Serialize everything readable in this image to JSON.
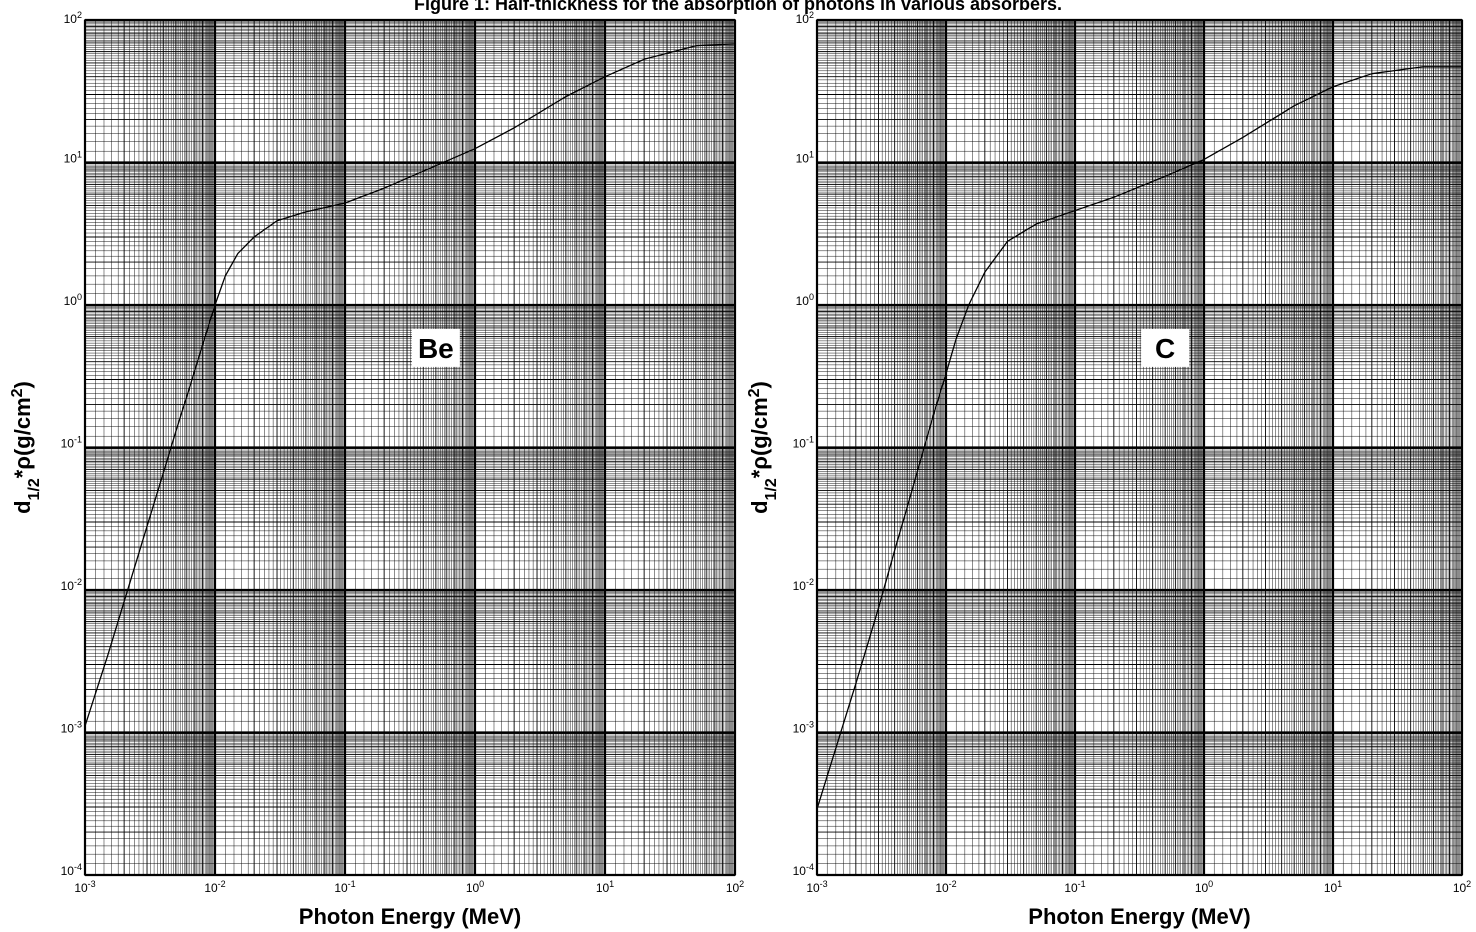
{
  "figure_title": "Figure 1: Half-thickness for the absorption of photons in various absorbers.",
  "chart_data": [
    {
      "type": "line",
      "label": "Be",
      "xlabel": "Photon Energy (MeV)",
      "ylabel": "d1/2*ρ(g/cm2)",
      "xscale": "log",
      "yscale": "log",
      "xlim": [
        0.001,
        100
      ],
      "ylim": [
        0.0001,
        100
      ],
      "grid": true,
      "x_ticks": [
        "10-3",
        "10-2",
        "10-1",
        "100",
        "101",
        "102"
      ],
      "y_ticks": [
        "10-4",
        "10-3",
        "10-2",
        "10-1",
        "100",
        "101",
        "102"
      ],
      "series": [
        {
          "x": [
            0.001,
            0.0015,
            0.002,
            0.003,
            0.004,
            0.005,
            0.006,
            0.008,
            0.01,
            0.012,
            0.015,
            0.02,
            0.03,
            0.05,
            0.1,
            0.2,
            0.5,
            1,
            2,
            5,
            10,
            20,
            50,
            100
          ],
          "y": [
            0.00111,
            0.0035,
            0.0083,
            0.028,
            0.066,
            0.13,
            0.22,
            0.52,
            1.0,
            1.6,
            2.3,
            3.0,
            3.9,
            4.5,
            5.2,
            6.6,
            9.5,
            12.5,
            17.5,
            29,
            40,
            53,
            66,
            68
          ]
        }
      ]
    },
    {
      "type": "line",
      "label": "C",
      "xlabel": "Photon Energy (MeV)",
      "ylabel": "d1/2*ρ(g/cm2)",
      "xscale": "log",
      "yscale": "log",
      "xlim": [
        0.001,
        100
      ],
      "ylim": [
        0.0001,
        100
      ],
      "grid": true,
      "x_ticks": [
        "10-3",
        "10-2",
        "10-1",
        "100",
        "101",
        "102"
      ],
      "y_ticks": [
        "10-4",
        "10-3",
        "10-2",
        "10-1",
        "100",
        "101",
        "102"
      ],
      "series": [
        {
          "x": [
            0.001,
            0.0015,
            0.002,
            0.003,
            0.004,
            0.005,
            0.006,
            0.008,
            0.01,
            0.012,
            0.015,
            0.02,
            0.03,
            0.05,
            0.1,
            0.2,
            0.5,
            1,
            2,
            5,
            10,
            20,
            50,
            100
          ],
          "y": [
            0.00029,
            0.00095,
            0.0022,
            0.0075,
            0.019,
            0.038,
            0.068,
            0.17,
            0.33,
            0.58,
            1.0,
            1.7,
            2.8,
            3.7,
            4.6,
            5.7,
            8.0,
            10.5,
            15,
            25,
            34,
            42,
            47,
            47
          ]
        }
      ]
    }
  ]
}
